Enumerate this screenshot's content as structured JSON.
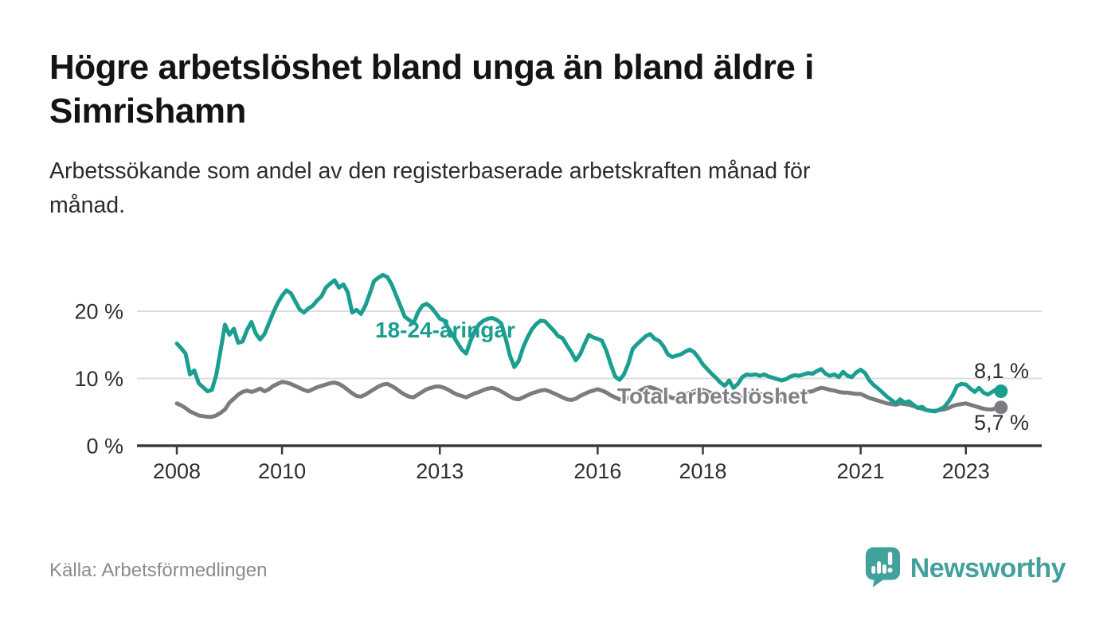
{
  "header": {
    "title_lines": [
      "Högre arbetslöshet bland unga än bland äldre i",
      "Simrishamn"
    ],
    "subtitle_lines": [
      "Arbetssökande som andel av den registerbaserade arbetskraften månad för",
      "månad."
    ]
  },
  "footer": {
    "source": "Källa: Arbetsförmedlingen",
    "brand": "Newsworthy",
    "brand_color": "#43a19b",
    "logo_icon": "newsworthy-speech-bubble-bar-chart-icon"
  },
  "chart_data": {
    "type": "line",
    "unit": "percent",
    "grid": "horizontal-only",
    "x_start_year": 2008,
    "x_step_months": 1,
    "last_point": "autumn 2023",
    "ylim": [
      0,
      27
    ],
    "y_ticks": [
      {
        "value": 0,
        "label": "0 %"
      },
      {
        "value": 10,
        "label": "10 %"
      },
      {
        "value": 20,
        "label": "20 %"
      }
    ],
    "x_ticks": [
      {
        "value": 2008,
        "label": "2008"
      },
      {
        "value": 2010,
        "label": "2010"
      },
      {
        "value": 2013,
        "label": "2013"
      },
      {
        "value": 2016,
        "label": "2016"
      },
      {
        "value": 2018,
        "label": "2018"
      },
      {
        "value": 2021,
        "label": "2021"
      },
      {
        "value": 2023,
        "label": "2023"
      }
    ],
    "series": [
      {
        "name": "18-24-åringar",
        "color": "#1a9e90",
        "end_value_label": "8,1 %",
        "end_value": 8.1,
        "values": [
          15.2,
          14.5,
          13.7,
          10.6,
          11.2,
          9.3,
          8.7,
          8.1,
          8.3,
          10.5,
          14.2,
          18.0,
          16.5,
          17.4,
          15.3,
          15.5,
          17.2,
          18.4,
          16.7,
          15.8,
          16.6,
          18.2,
          19.8,
          21.2,
          22.3,
          23.1,
          22.7,
          21.5,
          20.3,
          19.8,
          20.4,
          20.8,
          21.6,
          22.2,
          23.5,
          24.1,
          24.6,
          23.5,
          24.0,
          22.8,
          19.8,
          20.2,
          19.6,
          20.8,
          22.6,
          24.5,
          25.0,
          25.4,
          25.1,
          24.0,
          22.4,
          20.8,
          19.2,
          18.7,
          18.2,
          19.8,
          20.8,
          21.1,
          20.6,
          19.8,
          18.9,
          18.6,
          17.4,
          16.4,
          15.3,
          14.3,
          13.7,
          15.6,
          17.1,
          18.1,
          18.6,
          18.9,
          19.0,
          18.7,
          18.2,
          16.0,
          13.4,
          11.7,
          12.6,
          14.6,
          16.1,
          17.3,
          18.1,
          18.6,
          18.5,
          17.8,
          17.1,
          16.3,
          16.0,
          14.9,
          13.9,
          12.7,
          13.6,
          15.1,
          16.5,
          16.1,
          15.9,
          15.6,
          14.1,
          12.1,
          10.3,
          9.8,
          10.6,
          12.2,
          14.4,
          15.1,
          15.7,
          16.3,
          16.6,
          15.9,
          15.6,
          14.8,
          13.6,
          13.2,
          13.4,
          13.6,
          14.0,
          14.3,
          13.9,
          13.1,
          12.1,
          11.4,
          10.7,
          10.1,
          9.4,
          8.9,
          9.7,
          8.6,
          9.2,
          10.2,
          10.6,
          10.5,
          10.6,
          10.4,
          10.6,
          10.3,
          10.1,
          9.9,
          9.7,
          9.9,
          10.3,
          10.5,
          10.4,
          10.6,
          10.8,
          10.7,
          11.1,
          11.4,
          10.7,
          10.4,
          10.6,
          10.2,
          11.0,
          10.4,
          10.2,
          10.9,
          11.3,
          10.8,
          9.7,
          9.0,
          8.5,
          7.9,
          7.3,
          6.8,
          6.3,
          6.9,
          6.4,
          6.6,
          6.1,
          5.6,
          5.8,
          5.3,
          5.2,
          5.1,
          5.4,
          5.7,
          6.5,
          7.5,
          8.9,
          9.2,
          9.1,
          8.5,
          8.0,
          8.6,
          7.9,
          7.6,
          8.0,
          8.4,
          8.1
        ]
      },
      {
        "name": "Total arbetslöshet",
        "color": "#7c7c80",
        "end_value_label": "5,7 %",
        "end_value": 5.7,
        "values": [
          6.3,
          6.0,
          5.6,
          5.1,
          4.8,
          4.5,
          4.4,
          4.3,
          4.3,
          4.5,
          4.9,
          5.4,
          6.4,
          7.0,
          7.6,
          8.0,
          8.2,
          8.0,
          8.2,
          8.5,
          8.1,
          8.4,
          8.9,
          9.2,
          9.5,
          9.4,
          9.2,
          8.9,
          8.6,
          8.3,
          8.1,
          8.4,
          8.7,
          8.9,
          9.1,
          9.3,
          9.4,
          9.2,
          8.8,
          8.3,
          7.8,
          7.4,
          7.3,
          7.6,
          8.0,
          8.4,
          8.8,
          9.1,
          9.2,
          8.9,
          8.5,
          8.0,
          7.6,
          7.3,
          7.2,
          7.6,
          8.0,
          8.4,
          8.6,
          8.8,
          8.8,
          8.6,
          8.3,
          7.9,
          7.6,
          7.4,
          7.2,
          7.5,
          7.8,
          8.0,
          8.3,
          8.5,
          8.6,
          8.4,
          8.1,
          7.7,
          7.3,
          7.0,
          6.9,
          7.2,
          7.5,
          7.8,
          8.0,
          8.2,
          8.3,
          8.1,
          7.8,
          7.5,
          7.2,
          6.9,
          6.8,
          7.0,
          7.4,
          7.7,
          8.0,
          8.2,
          8.4,
          8.2,
          7.9,
          7.5,
          7.2,
          6.9,
          6.8,
          7.1,
          7.5,
          7.9,
          8.3,
          8.6,
          8.7,
          8.5,
          8.2,
          7.8,
          7.4,
          7.1,
          7.0,
          7.3,
          7.6,
          7.9,
          8.1,
          8.3,
          8.3,
          8.1,
          7.8,
          7.4,
          7.1,
          6.8,
          6.7,
          6.9,
          7.2,
          7.4,
          7.6,
          7.8,
          7.9,
          7.7,
          7.5,
          7.2,
          7.0,
          6.8,
          6.8,
          7.0,
          7.3,
          7.5,
          7.7,
          7.9,
          8.0,
          8.1,
          8.4,
          8.6,
          8.5,
          8.3,
          8.2,
          8.0,
          7.9,
          7.9,
          7.8,
          7.7,
          7.7,
          7.4,
          7.1,
          6.9,
          6.7,
          6.5,
          6.3,
          6.2,
          6.1,
          6.3,
          6.2,
          6.1,
          5.9,
          5.7,
          5.5,
          5.3,
          5.2,
          5.2,
          5.3,
          5.4,
          5.6,
          5.9,
          6.1,
          6.2,
          6.3,
          6.1,
          5.9,
          5.7,
          5.5,
          5.4,
          5.4,
          5.6,
          5.7
        ]
      }
    ]
  }
}
